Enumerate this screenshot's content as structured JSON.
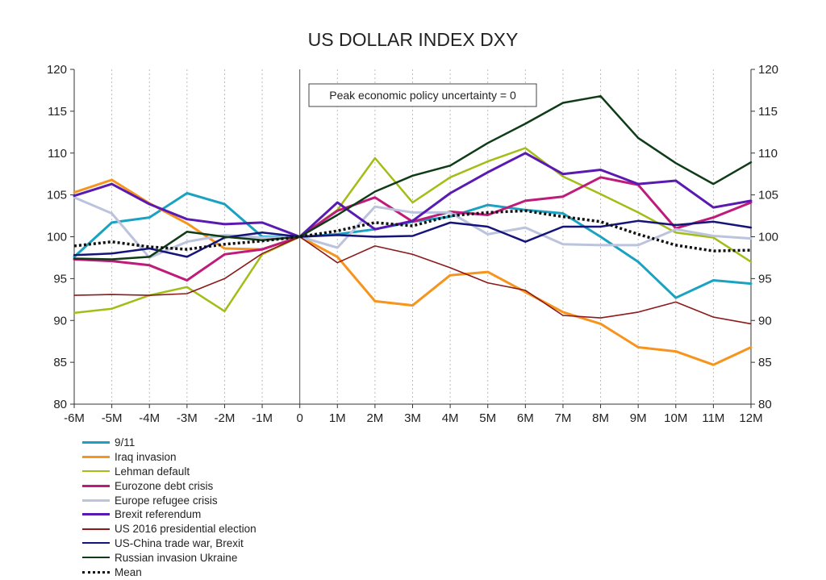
{
  "chart_data": {
    "type": "line",
    "title": "US DOLLAR INDEX DXY",
    "annotation": "Peak economic policy uncertainty = 0",
    "xlabel": "",
    "ylabel": "",
    "categories": [
      "-6M",
      "-5M",
      "-4M",
      "-3M",
      "-2M",
      "-1M",
      "0",
      "1M",
      "2M",
      "3M",
      "4M",
      "5M",
      "6M",
      "7M",
      "8M",
      "9M",
      "10M",
      "11M",
      "12M"
    ],
    "ylim": [
      80,
      120
    ],
    "yticks": [
      80,
      85,
      90,
      95,
      100,
      105,
      110,
      115,
      120
    ],
    "y_axis_right": true,
    "grid": true,
    "legend_position": "bottom-left",
    "series": [
      {
        "name": "9/11",
        "color": "#1aa3c0",
        "width": 3,
        "dash": "",
        "values": [
          97.6,
          101.7,
          102.3,
          105.2,
          103.9,
          100.0,
          100,
          100.3,
          100.9,
          101.8,
          102.4,
          103.8,
          103.2,
          102.8,
          100.0,
          97.0,
          92.7,
          94.8,
          94.4
        ]
      },
      {
        "name": "Iraq invasion",
        "color": "#f7941d",
        "width": 3,
        "dash": "",
        "values": [
          105.3,
          106.8,
          104.0,
          101.6,
          98.6,
          98.5,
          100,
          97.6,
          92.3,
          91.8,
          95.4,
          95.8,
          93.4,
          91.0,
          89.6,
          86.8,
          86.3,
          84.7,
          86.8
        ]
      },
      {
        "name": "Lehman default",
        "color": "#a3bd16",
        "width": 2.5,
        "dash": "",
        "values": [
          90.9,
          91.4,
          93.0,
          94.0,
          91.1,
          97.9,
          100,
          103.2,
          109.4,
          104.1,
          107.1,
          109.0,
          110.6,
          107.2,
          105.1,
          102.9,
          100.5,
          99.9,
          97.0
        ]
      },
      {
        "name": "Eurozone debt crisis",
        "color": "#bf1b7a",
        "width": 3,
        "dash": "",
        "values": [
          97.3,
          97.1,
          96.6,
          94.8,
          97.9,
          98.5,
          100,
          103.1,
          104.7,
          101.8,
          103.0,
          102.6,
          104.3,
          104.8,
          107.1,
          106.2,
          101.0,
          102.3,
          104.1
        ]
      },
      {
        "name": "Europe refugee crisis",
        "color": "#bcc3dd",
        "width": 3,
        "dash": "",
        "values": [
          104.7,
          102.8,
          97.5,
          99.4,
          100.2,
          99.9,
          100,
          98.7,
          103.6,
          102.9,
          102.9,
          100.3,
          101.1,
          99.1,
          99.0,
          99.0,
          100.9,
          100.1,
          99.8
        ]
      },
      {
        "name": "Brexit referendum",
        "color": "#5a1ab2",
        "width": 3,
        "dash": "",
        "values": [
          104.9,
          106.3,
          103.9,
          102.1,
          101.5,
          101.7,
          100,
          104.1,
          100.9,
          101.9,
          105.2,
          107.7,
          110.0,
          107.5,
          108.0,
          106.3,
          106.7,
          103.5,
          104.3
        ]
      },
      {
        "name": "US 2016 presidential election",
        "color": "#8c1a1a",
        "width": 1.6,
        "dash": "",
        "values": [
          93.0,
          93.1,
          93.0,
          93.2,
          95.0,
          98.0,
          100,
          96.9,
          98.9,
          97.9,
          96.3,
          94.5,
          93.6,
          90.6,
          90.3,
          91.0,
          92.2,
          90.4,
          89.6
        ]
      },
      {
        "name": "US-China trade war, Brexit",
        "color": "#14147a",
        "width": 2.5,
        "dash": "",
        "values": [
          97.8,
          98.0,
          98.6,
          97.6,
          99.9,
          100.5,
          100,
          100.2,
          100.0,
          100.1,
          101.7,
          101.2,
          99.4,
          101.2,
          101.2,
          101.9,
          101.4,
          101.8,
          101.1
        ]
      },
      {
        "name": "Russian invasion Ukraine",
        "color": "#0f3b17",
        "width": 2.5,
        "dash": "",
        "values": [
          97.4,
          97.3,
          97.6,
          100.6,
          100.0,
          99.6,
          100,
          102.6,
          105.4,
          107.3,
          108.5,
          111.2,
          113.5,
          116.0,
          116.8,
          111.8,
          108.8,
          106.3,
          108.9
        ]
      },
      {
        "name": "Mean",
        "color": "#111111",
        "width": 3.5,
        "dash": "3,3",
        "values": [
          98.9,
          99.4,
          98.8,
          98.5,
          99.1,
          99.5,
          100,
          100.7,
          101.7,
          101.3,
          102.5,
          102.9,
          103.1,
          102.4,
          101.8,
          100.3,
          99.0,
          98.3,
          98.4
        ]
      }
    ]
  }
}
